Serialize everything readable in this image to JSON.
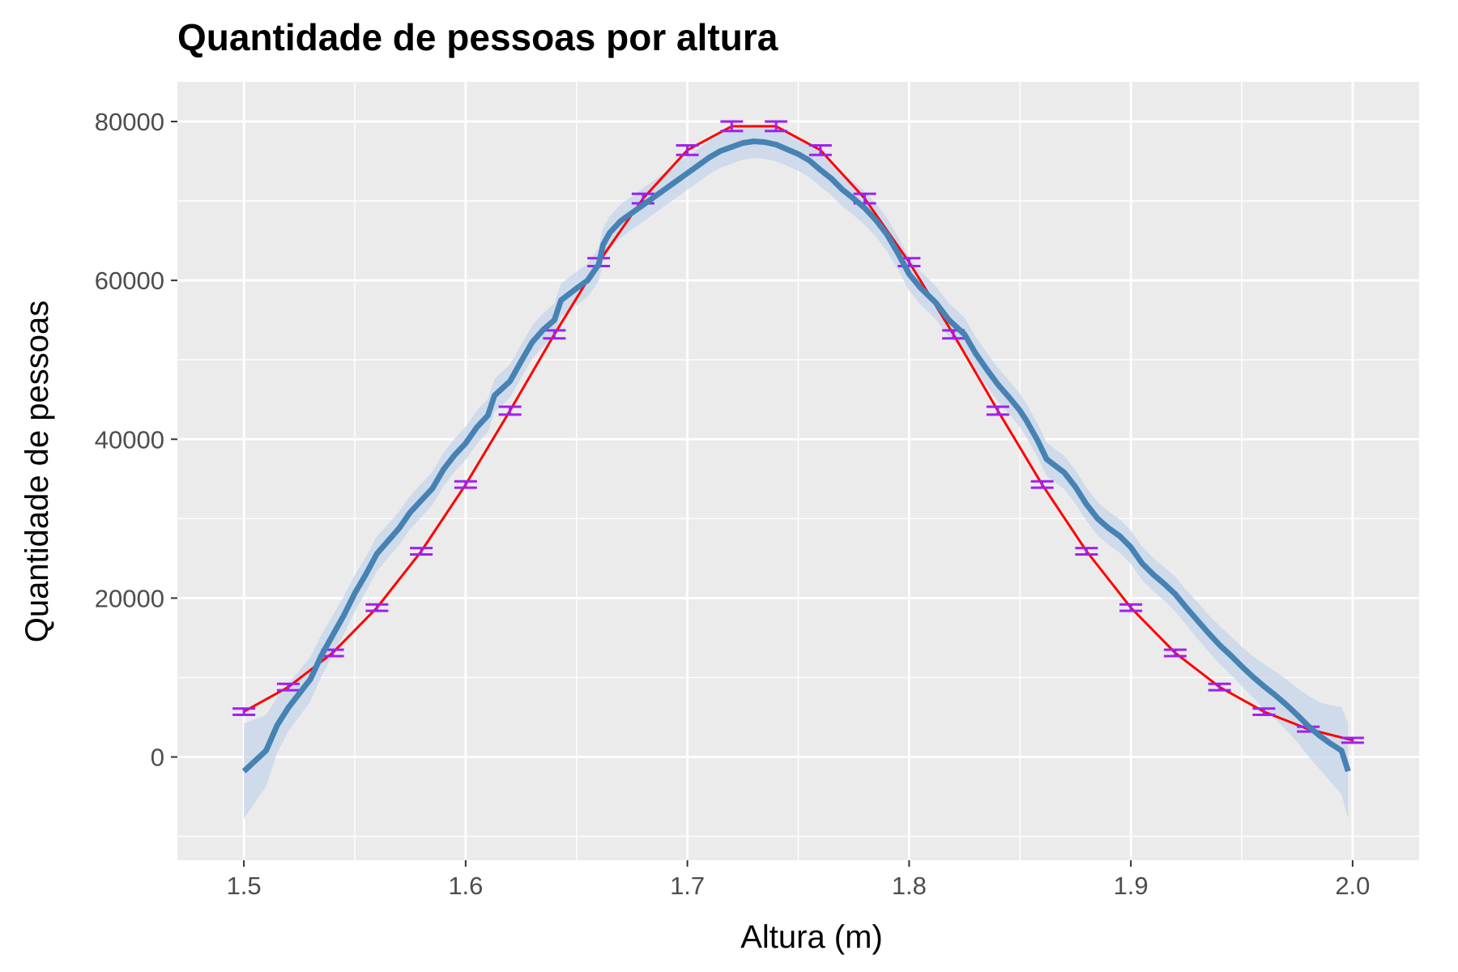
{
  "chart_data": {
    "type": "line",
    "title": "Quantidade de pessoas por altura",
    "xlabel": "Altura (m)",
    "ylabel": "Quantidade de pessoas",
    "xlim": [
      1.47,
      2.03
    ],
    "ylim": [
      -13000,
      85000
    ],
    "x_ticks": [
      1.5,
      1.6,
      1.7,
      1.8,
      1.9,
      2.0
    ],
    "x_tick_labels": [
      "1.5",
      "1.6",
      "1.7",
      "1.8",
      "1.9",
      "2.0"
    ],
    "y_ticks": [
      0,
      20000,
      40000,
      60000,
      80000
    ],
    "y_tick_labels": [
      "0",
      "20000",
      "40000",
      "60000",
      "80000"
    ],
    "grid": true,
    "colors": {
      "panel": "#ebebeb",
      "grid": "#ffffff",
      "theoretical_line": "#ff0000",
      "error_bars": "#a020f0",
      "smooth_line": "#4682b4",
      "confidence_band": "#c6d5ea"
    },
    "series": [
      {
        "kind": "line_with_errorbars",
        "x": [
          1.5,
          1.52,
          1.54,
          1.56,
          1.58,
          1.6,
          1.62,
          1.64,
          1.66,
          1.68,
          1.7,
          1.72,
          1.74,
          1.76,
          1.78,
          1.8,
          1.82,
          1.84,
          1.86,
          1.88,
          1.9,
          1.92,
          1.94,
          1.96,
          1.98,
          2.0
        ],
        "y": [
          5700,
          8800,
          13100,
          18800,
          25900,
          34300,
          43600,
          53200,
          62300,
          70300,
          76400,
          79400,
          79400,
          76400,
          70300,
          62300,
          53200,
          43600,
          34300,
          25900,
          18800,
          13100,
          8800,
          5700,
          3500,
          2100
        ],
        "error": [
          400,
          400,
          400,
          400,
          400,
          400,
          500,
          500,
          500,
          600,
          600,
          600,
          600,
          600,
          600,
          500,
          500,
          500,
          400,
          400,
          400,
          400,
          400,
          400,
          300,
          300
        ]
      },
      {
        "kind": "smooth_with_band",
        "x": [
          1.5,
          1.51,
          1.515,
          1.52,
          1.53,
          1.535,
          1.54,
          1.545,
          1.55,
          1.555,
          1.56,
          1.565,
          1.57,
          1.575,
          1.58,
          1.585,
          1.59,
          1.595,
          1.6,
          1.605,
          1.61,
          1.613,
          1.62,
          1.625,
          1.63,
          1.635,
          1.64,
          1.643,
          1.65,
          1.655,
          1.66,
          1.662,
          1.665,
          1.67,
          1.675,
          1.68,
          1.685,
          1.69,
          1.695,
          1.7,
          1.705,
          1.71,
          1.715,
          1.72,
          1.725,
          1.73,
          1.735,
          1.74,
          1.745,
          1.75,
          1.755,
          1.76,
          1.765,
          1.77,
          1.775,
          1.78,
          1.785,
          1.79,
          1.795,
          1.8,
          1.805,
          1.812,
          1.818,
          1.825,
          1.83,
          1.835,
          1.84,
          1.845,
          1.85,
          1.853,
          1.858,
          1.862,
          1.87,
          1.875,
          1.88,
          1.885,
          1.89,
          1.895,
          1.9,
          1.905,
          1.91,
          1.915,
          1.92,
          1.925,
          1.93,
          1.935,
          1.94,
          1.945,
          1.95,
          1.955,
          1.96,
          1.965,
          1.97,
          1.975,
          1.98,
          1.985,
          1.99,
          1.995,
          1.998
        ],
        "y": [
          -1800,
          800,
          4000,
          6200,
          9800,
          12800,
          15300,
          17800,
          20600,
          23000,
          25600,
          27200,
          28800,
          30800,
          32300,
          33800,
          36200,
          38000,
          39500,
          41500,
          43000,
          45500,
          47300,
          49800,
          52200,
          53800,
          55000,
          57500,
          59000,
          60000,
          62000,
          64500,
          66000,
          67500,
          68500,
          69500,
          70500,
          71500,
          72500,
          73500,
          74500,
          75500,
          76300,
          76800,
          77300,
          77500,
          77400,
          77100,
          76500,
          75900,
          75100,
          73900,
          72800,
          71400,
          70300,
          69100,
          67600,
          65800,
          63400,
          60800,
          59100,
          57200,
          55000,
          53200,
          50800,
          48800,
          46900,
          45300,
          43600,
          42300,
          39800,
          37500,
          35800,
          34000,
          31800,
          30000,
          28800,
          27800,
          26400,
          24400,
          23000,
          21800,
          20500,
          18800,
          17200,
          15600,
          14100,
          12800,
          11400,
          10100,
          8900,
          7800,
          6600,
          5300,
          3900,
          2700,
          1700,
          800,
          -1800
        ],
        "band_halfwidth": [
          6000,
          4500,
          3500,
          3000,
          2800,
          2600,
          2500,
          2400,
          2300,
          2200,
          2200,
          2100,
          2100,
          2100,
          2100,
          2100,
          2100,
          2100,
          2100,
          2100,
          2100,
          2100,
          2100,
          2100,
          2100,
          2100,
          2100,
          2100,
          2100,
          2100,
          2100,
          2100,
          2100,
          2100,
          2100,
          2100,
          2100,
          2100,
          2100,
          2100,
          2100,
          2100,
          2100,
          2100,
          2100,
          2100,
          2100,
          2100,
          2100,
          2100,
          2100,
          2100,
          2100,
          2100,
          2100,
          2100,
          2100,
          2100,
          2100,
          2100,
          2100,
          2100,
          2100,
          2100,
          2100,
          2100,
          2100,
          2100,
          2100,
          2100,
          2100,
          2100,
          2100,
          2100,
          2100,
          2100,
          2100,
          2100,
          2100,
          2100,
          2100,
          2100,
          2200,
          2200,
          2300,
          2300,
          2400,
          2400,
          2500,
          2600,
          2800,
          3000,
          3200,
          3400,
          3800,
          4200,
          4800,
          5500,
          6000
        ]
      }
    ]
  }
}
